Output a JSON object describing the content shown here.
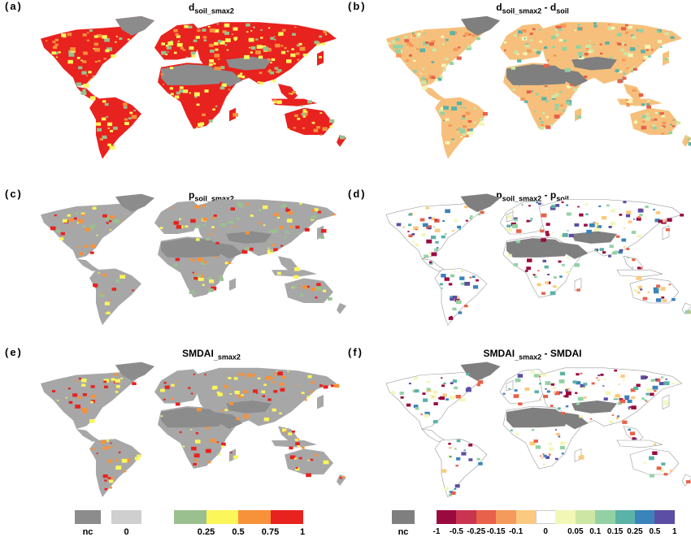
{
  "panels": [
    {
      "label": "(a)",
      "title_main": "d",
      "title_sub": "soil_smax2",
      "title_rest": "",
      "title_sub2": "",
      "style": "abs"
    },
    {
      "label": "(b)",
      "title_main": "d",
      "title_sub": "soil_smax2",
      "title_rest": " - d",
      "title_sub2": "soil",
      "style": "diffb"
    },
    {
      "label": "(c)",
      "title_main": "p",
      "title_sub": "soil_smax2",
      "title_rest": "",
      "title_sub2": "",
      "style": "sparse"
    },
    {
      "label": "(d)",
      "title_main": "p",
      "title_sub": "soil_smax2",
      "title_rest": " - p",
      "title_sub2": "soil",
      "style": "diffs"
    },
    {
      "label": "(e)",
      "title_main": "SMDAI",
      "title_sub": "_smax2",
      "title_rest": "",
      "title_sub2": "",
      "style": "sparse2"
    },
    {
      "label": "(f)",
      "title_main": "SMDAI",
      "title_sub": "_smax2",
      "title_rest": " - SMDAI",
      "title_sub2": "",
      "style": "diffs"
    }
  ],
  "legend_left": {
    "nc_label": "nc",
    "zero_label": "0",
    "nc_color": "#8c8c8c",
    "zero_color": "#cfcfcf",
    "colors": [
      "#9bc08f",
      "#fbf65a",
      "#f7923a",
      "#e8221f"
    ],
    "ticks": [
      "0.25",
      "0.5",
      "0.75",
      "1"
    ]
  },
  "legend_right": {
    "nc_label": "nc",
    "nc_color": "#7f7f7f",
    "colors": [
      "#9b0a3e",
      "#c93550",
      "#e8614a",
      "#f49a5c",
      "#fbc97f",
      "#ffffff",
      "#f2f7b6",
      "#cde6a3",
      "#93d1a4",
      "#5bb2a7",
      "#3a83bb",
      "#5b4ea3"
    ],
    "ticks": [
      "-1",
      "-0.5",
      "-0.25",
      "-0.15",
      "-0.1",
      "0",
      "0.05",
      "0.1",
      "0.15",
      "0.25",
      "0.5",
      "1"
    ]
  }
}
